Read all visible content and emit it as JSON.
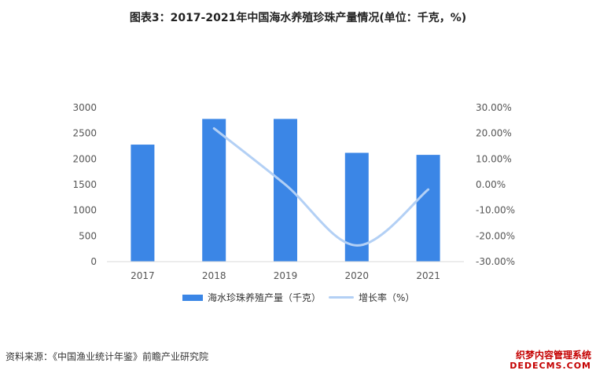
{
  "title": "图表3：2017-2021年中国海水养殖珍珠产量情况(单位：千克，%)",
  "source": "资料来源：《中国渔业统计年鉴》前瞻产业研究院",
  "badge": {
    "line1": "织梦内容管理系统",
    "line2": "DEDECMS.COM"
  },
  "legend": {
    "bar_label": "海水珍珠养殖产量（千克）",
    "line_label": "增长率（%）"
  },
  "chart_data": {
    "type": "bar",
    "categories": [
      "2017",
      "2018",
      "2019",
      "2020",
      "2021"
    ],
    "series": [
      {
        "name": "海水珍珠养殖产量（千克）",
        "type": "bar",
        "axis": "left",
        "color": "#3b86e6",
        "values": [
          2280,
          2780,
          2780,
          2120,
          2080
        ]
      },
      {
        "name": "增长率（%）",
        "type": "line",
        "axis": "right",
        "color": "#b3d0f5",
        "values": [
          null,
          21.9,
          0.0,
          -23.7,
          -1.9
        ]
      }
    ],
    "y_left": {
      "min": 0,
      "max": 3000,
      "ticks": [
        "0",
        "500",
        "1000",
        "1500",
        "2000",
        "2500",
        "3000"
      ]
    },
    "y_right": {
      "min": -30,
      "max": 30,
      "ticks": [
        "-30.00%",
        "-20.00%",
        "-10.00%",
        "0.00%",
        "10.00%",
        "20.00%",
        "30.00%"
      ]
    },
    "grid": false,
    "legend_position": "bottom"
  }
}
